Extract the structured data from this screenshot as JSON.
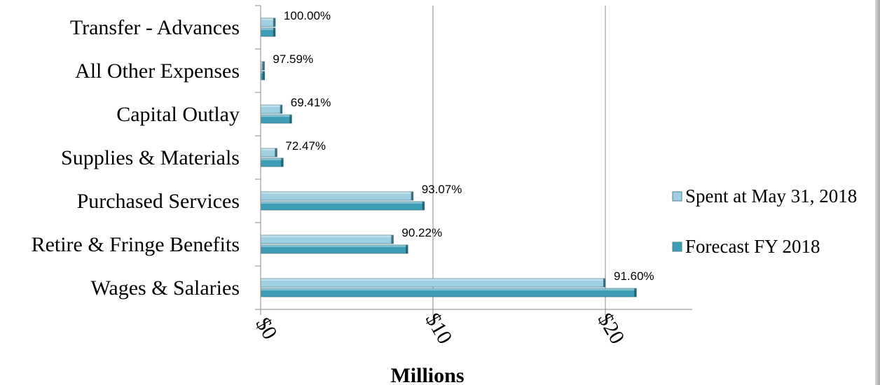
{
  "chart_data": {
    "type": "bar",
    "orientation": "horizontal",
    "categories": [
      "Transfer - Advances",
      "All Other Expenses",
      "Capital Outlay",
      "Supplies & Materials",
      "Purchased Services",
      "Retire & Fringe Benefits",
      "Wages & Salaries"
    ],
    "series": [
      {
        "name": "Spent at May 31, 2018",
        "color": "#9fd0e2",
        "values": [
          0.85,
          0.22,
          1.25,
          0.95,
          8.85,
          7.7,
          20.0
        ]
      },
      {
        "name": "Forecast FY 2018",
        "color": "#3d9db5",
        "values": [
          0.85,
          0.23,
          1.8,
          1.31,
          9.5,
          8.54,
          21.8
        ]
      }
    ],
    "data_labels": [
      "100.00%",
      "97.59%",
      "69.41%",
      "72.47%",
      "93.07%",
      "90.22%",
      "91.60%"
    ],
    "x_ticks": [
      "$0",
      "$10",
      "$20"
    ],
    "xlabel": "Millions",
    "xlim": [
      0,
      25
    ],
    "gridlines": "vertical",
    "legend_position": "right"
  }
}
